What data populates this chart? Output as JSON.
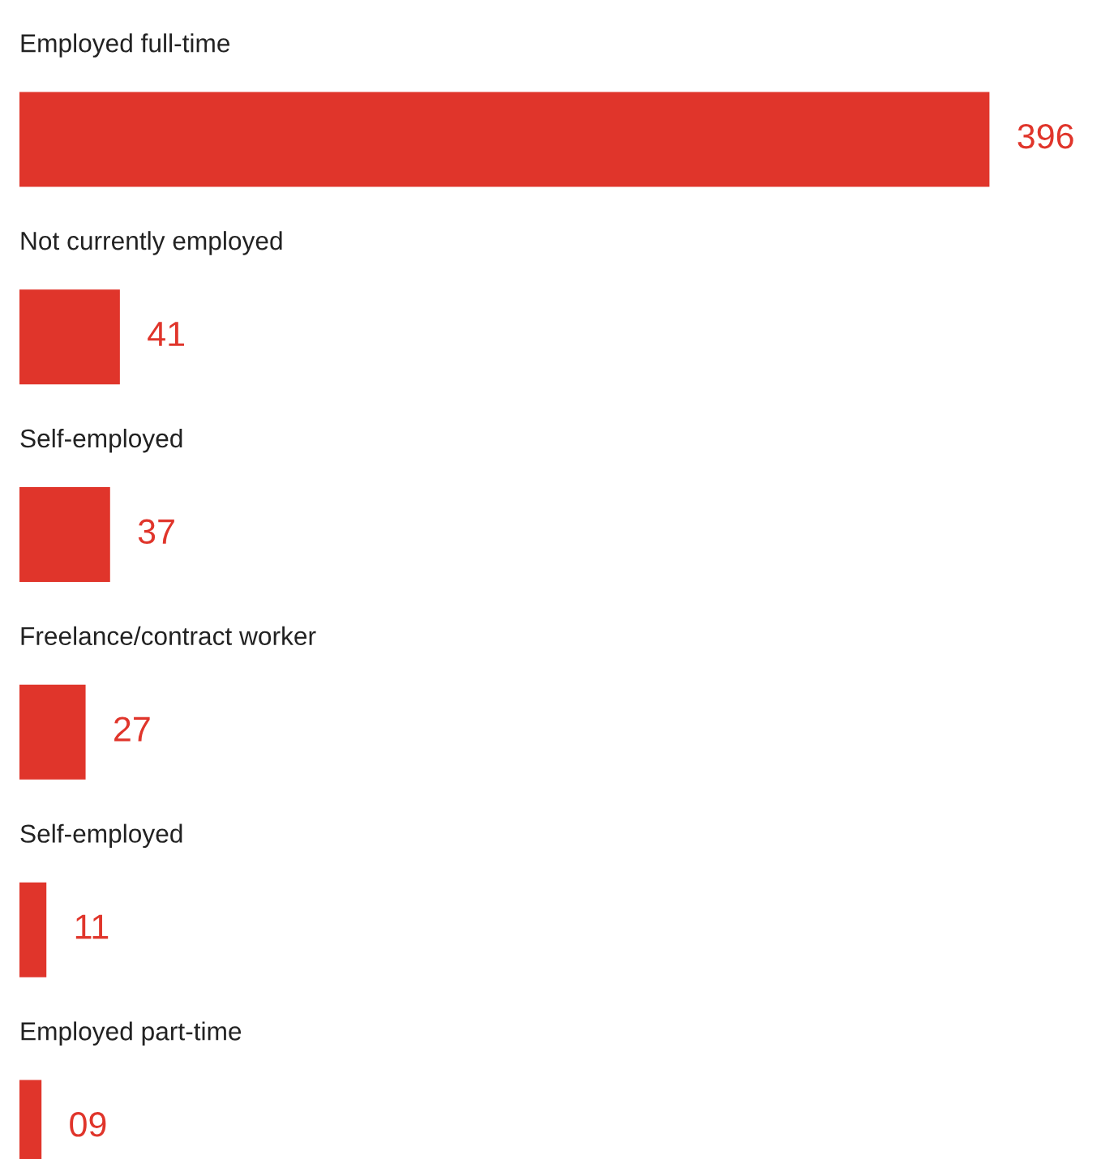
{
  "chart_data": {
    "type": "bar",
    "orientation": "horizontal",
    "categories": [
      "Employed full-time",
      "Not currently employed",
      "Self-employed",
      "Freelance/contract worker",
      "Self-employed",
      "Employed part-time"
    ],
    "values": [
      396,
      41,
      37,
      27,
      11,
      9
    ],
    "value_labels": [
      "396",
      "41",
      "37",
      "27",
      "11",
      "09"
    ],
    "color": "#e0352b"
  }
}
